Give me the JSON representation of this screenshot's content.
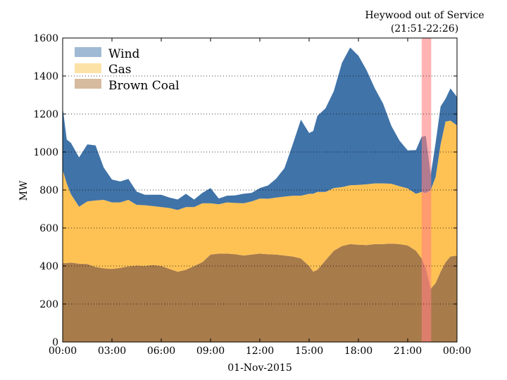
{
  "chart_data": {
    "type": "area",
    "stacked": true,
    "title": "",
    "xlabel": "01-Nov-2015",
    "ylabel": "MW",
    "xlim": [
      "00:00",
      "24:00"
    ],
    "ylim": [
      0,
      1600
    ],
    "x_ticks": [
      "00:00",
      "03:00",
      "06:00",
      "09:00",
      "12:00",
      "15:00",
      "18:00",
      "21:00",
      "00:00"
    ],
    "y_ticks": [
      "0",
      "200",
      "400",
      "600",
      "800",
      "1000",
      "1200",
      "1400",
      "1600"
    ],
    "grid": "horizontal dotted",
    "legend_position": "top-left",
    "x_hours": [
      0,
      0.25,
      0.5,
      1,
      1.5,
      2,
      2.5,
      3,
      3.5,
      4,
      4.5,
      5,
      5.5,
      6,
      6.5,
      7,
      7.5,
      8,
      8.5,
      9,
      9.5,
      10,
      10.5,
      11,
      11.5,
      12,
      12.5,
      13,
      13.5,
      14,
      14.5,
      15,
      15.25,
      15.5,
      16,
      16.5,
      17,
      17.5,
      18,
      18.5,
      19,
      19.5,
      20,
      20.5,
      21,
      21.5,
      21.85,
      22.1,
      22.4,
      22.7,
      23,
      23.3,
      23.6,
      24
    ],
    "series": [
      {
        "name": "Brown Coal",
        "color": "#a87b4b",
        "legend_color": "#d6bb9e",
        "values": [
          415,
          415,
          418,
          412,
          410,
          395,
          388,
          385,
          390,
          398,
          402,
          400,
          405,
          400,
          385,
          370,
          380,
          400,
          420,
          460,
          465,
          465,
          462,
          455,
          460,
          465,
          462,
          460,
          455,
          450,
          440,
          400,
          370,
          380,
          430,
          480,
          505,
          515,
          512,
          510,
          515,
          515,
          518,
          515,
          508,
          480,
          440,
          390,
          280,
          310,
          370,
          420,
          450,
          455
        ]
      },
      {
        "name": "Gas",
        "color": "#fec254",
        "legend_color": "#fde2a8",
        "values": [
          490,
          420,
          360,
          300,
          330,
          350,
          360,
          350,
          345,
          350,
          320,
          320,
          310,
          310,
          320,
          325,
          330,
          310,
          310,
          270,
          260,
          270,
          270,
          275,
          280,
          290,
          292,
          300,
          310,
          320,
          330,
          380,
          410,
          410,
          360,
          330,
          310,
          310,
          315,
          320,
          320,
          320,
          315,
          305,
          300,
          300,
          350,
          395,
          520,
          560,
          670,
          740,
          715,
          685
        ]
      },
      {
        "name": "Wind",
        "color": "#4073a8",
        "legend_color": "#a0b9d4",
        "values": [
          330,
          230,
          270,
          260,
          300,
          290,
          170,
          120,
          110,
          110,
          70,
          55,
          60,
          65,
          55,
          55,
          70,
          40,
          55,
          80,
          30,
          35,
          40,
          50,
          45,
          55,
          70,
          100,
          150,
          270,
          400,
          320,
          330,
          400,
          440,
          510,
          655,
          725,
          680,
          600,
          500,
          420,
          305,
          240,
          200,
          230,
          290,
          300,
          80,
          180,
          200,
          120,
          170,
          150
        ]
      }
    ],
    "event_band": {
      "start_hour": 21.85,
      "end_hour": 22.43,
      "color": "#ff8080",
      "label_line1": "Heywood out of Service",
      "label_line2": "(21:51-22:26)"
    }
  }
}
